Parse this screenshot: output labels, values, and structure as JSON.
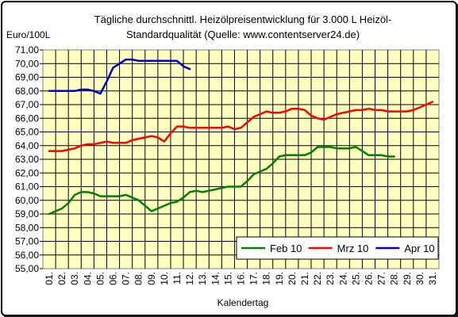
{
  "chart_data": {
    "type": "line",
    "title": "Tägliche durchschnittl. Heizölpreisentwicklung für 3.000 L Heizöl-",
    "subtitle": "Standardqualität (Quelle: www.contentserver24.de)",
    "ylabel": "Euro/100L",
    "xlabel": "Kalendertag",
    "ylim": [
      55,
      71
    ],
    "yticks": [
      "55,00",
      "56,00",
      "57,00",
      "58,00",
      "59,00",
      "60,00",
      "61,00",
      "62,00",
      "63,00",
      "64,00",
      "65,00",
      "66,00",
      "67,00",
      "68,00",
      "69,00",
      "70,00",
      "71,00"
    ],
    "categories": [
      "01.",
      "02.",
      "03.",
      "04.",
      "05.",
      "06.",
      "07.",
      "08.",
      "09.",
      "10.",
      "11.",
      "12.",
      "13.",
      "14.",
      "15.",
      "16.",
      "17.",
      "18.",
      "19.",
      "20.",
      "21.",
      "22.",
      "23.",
      "24.",
      "25.",
      "26.",
      "27.",
      "28.",
      "29.",
      "30.",
      "31."
    ],
    "grid": true,
    "legend_position": "bottom-right",
    "series": [
      {
        "name": "Feb 10",
        "color": "#008000",
        "x": [
          1,
          1.5,
          2,
          2.5,
          3,
          3.5,
          4,
          4.5,
          5,
          5.5,
          6,
          6.5,
          7,
          7.5,
          8,
          8.5,
          9,
          9.5,
          10,
          10.5,
          11,
          11.5,
          12,
          12.5,
          13,
          13.5,
          14,
          14.5,
          15,
          15.5,
          16,
          16.5,
          17,
          17.5,
          18,
          18.5,
          19,
          19.5,
          20,
          20.5,
          21,
          21.5,
          22,
          22.5,
          23,
          23.5,
          24,
          24.5,
          25,
          25.5,
          26,
          26.5,
          27,
          27.5,
          28
        ],
        "values": [
          59.0,
          59.2,
          59.4,
          59.8,
          60.4,
          60.6,
          60.6,
          60.5,
          60.3,
          60.3,
          60.3,
          60.3,
          60.4,
          60.2,
          60.0,
          59.6,
          59.2,
          59.4,
          59.6,
          59.8,
          59.9,
          60.2,
          60.6,
          60.7,
          60.6,
          60.7,
          60.8,
          60.9,
          61.0,
          61.0,
          61.0,
          61.4,
          61.9,
          62.1,
          62.3,
          62.7,
          63.2,
          63.3,
          63.3,
          63.3,
          63.3,
          63.5,
          63.9,
          63.9,
          63.9,
          63.8,
          63.8,
          63.8,
          63.9,
          63.6,
          63.3,
          63.3,
          63.3,
          63.2,
          63.2
        ]
      },
      {
        "name": "Mrz 10",
        "color": "#ff0000",
        "x": [
          1,
          1.5,
          2,
          2.5,
          3,
          3.5,
          4,
          4.5,
          5,
          5.5,
          6,
          6.5,
          7,
          7.5,
          8,
          8.5,
          9,
          9.5,
          10,
          10.5,
          11,
          11.5,
          12,
          12.5,
          13,
          13.5,
          14,
          14.5,
          15,
          15.5,
          16,
          16.5,
          17,
          17.5,
          18,
          18.5,
          19,
          19.5,
          20,
          20.5,
          21,
          21.5,
          22,
          22.5,
          23,
          23.5,
          24,
          24.5,
          25,
          25.5,
          26,
          26.5,
          27,
          27.5,
          28,
          28.5,
          29,
          29.5,
          30,
          30.5,
          31
        ],
        "values": [
          63.6,
          63.6,
          63.6,
          63.7,
          63.8,
          64.0,
          64.1,
          64.1,
          64.2,
          64.3,
          64.2,
          64.2,
          64.2,
          64.4,
          64.5,
          64.6,
          64.7,
          64.6,
          64.3,
          64.9,
          65.4,
          65.4,
          65.3,
          65.3,
          65.3,
          65.3,
          65.3,
          65.3,
          65.4,
          65.2,
          65.3,
          65.7,
          66.1,
          66.3,
          66.5,
          66.4,
          66.4,
          66.5,
          66.7,
          66.7,
          66.6,
          66.2,
          66.0,
          65.9,
          66.1,
          66.3,
          66.4,
          66.5,
          66.6,
          66.6,
          66.7,
          66.6,
          66.6,
          66.5,
          66.5,
          66.5,
          66.5,
          66.6,
          66.8,
          67.0,
          67.2
        ]
      },
      {
        "name": "Apr 10",
        "color": "#0000cc",
        "x": [
          1,
          1.5,
          2,
          2.5,
          3,
          3.5,
          4,
          4.5,
          5,
          5.5,
          6,
          6.5,
          7,
          7.5,
          8,
          8.5,
          9,
          9.5,
          10,
          10.5,
          11,
          11.5,
          12
        ],
        "values": [
          68.0,
          68.0,
          68.0,
          68.0,
          68.0,
          68.1,
          68.1,
          68.0,
          67.8,
          68.7,
          69.7,
          70.0,
          70.3,
          70.3,
          70.2,
          70.2,
          70.2,
          70.2,
          70.2,
          70.2,
          70.2,
          69.8,
          69.6
        ]
      }
    ]
  }
}
